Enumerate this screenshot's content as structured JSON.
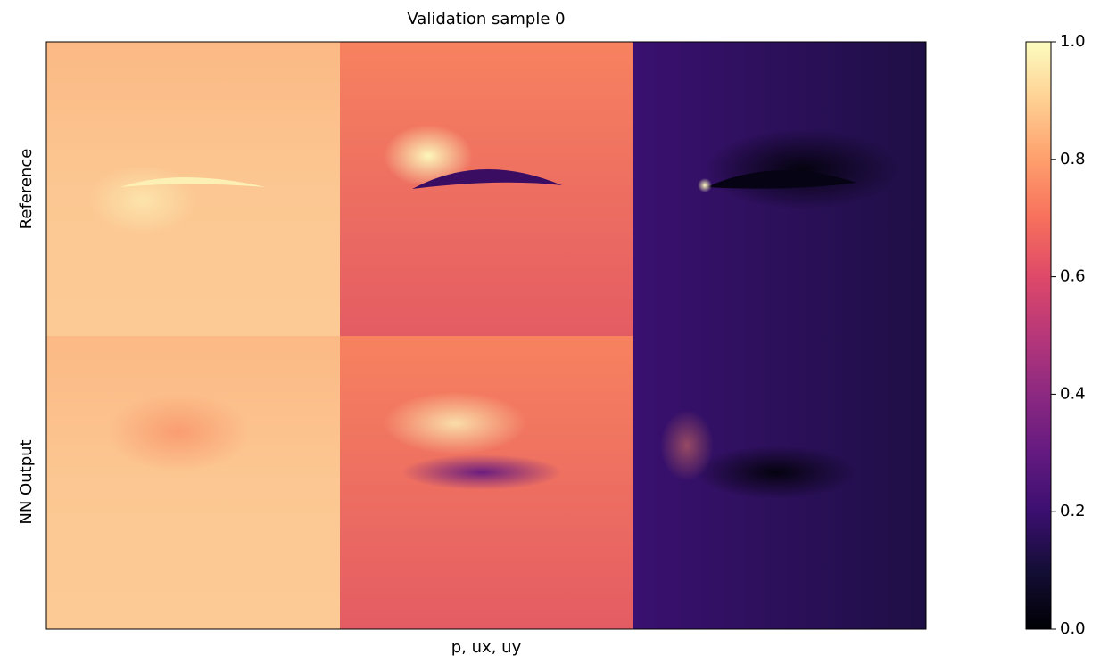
{
  "chart_data": {
    "type": "image",
    "title": "Validation sample 0",
    "xlabel": "p, ux, uy",
    "row_labels": [
      "Reference",
      "NN Output"
    ],
    "colormap": "magma",
    "clim": [
      0,
      1
    ],
    "cticks": [
      {
        "value": 0,
        "label": "0.0"
      },
      0.2,
      0.4,
      0.6,
      0.8,
      {
        "value": 1,
        "label": "1.0"
      }
    ]
  }
}
